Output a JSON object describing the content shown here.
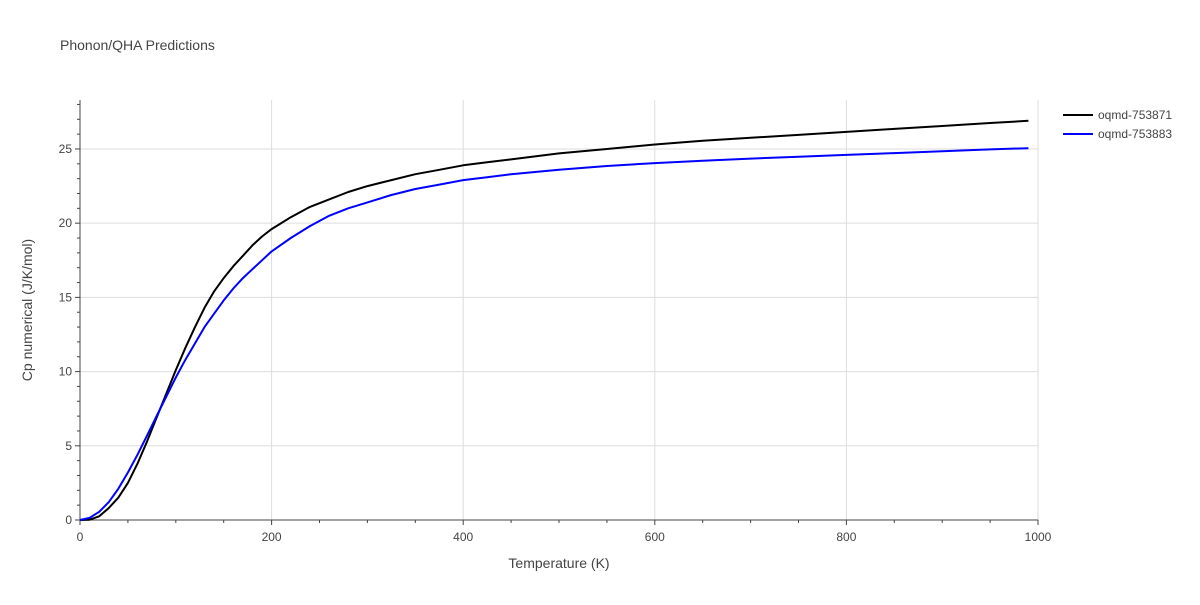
{
  "chart_data": {
    "type": "line",
    "title": "Phonon/QHA Predictions",
    "xlabel": "Temperature (K)",
    "ylabel": "Cp numerical (J/K/mol)",
    "xlim": [
      0,
      1000
    ],
    "ylim": [
      0,
      28.3
    ],
    "xticks": [
      0,
      200,
      400,
      600,
      800,
      1000
    ],
    "yticks": [
      0,
      5,
      10,
      15,
      20,
      25
    ],
    "grid": true,
    "legend_position": "top-right",
    "series": [
      {
        "name": "oqmd-753871",
        "color": "#000000",
        "x": [
          0,
          10,
          20,
          30,
          40,
          50,
          60,
          70,
          80,
          90,
          100,
          110,
          120,
          130,
          140,
          150,
          160,
          170,
          180,
          190,
          200,
          220,
          240,
          260,
          280,
          300,
          325,
          350,
          375,
          400,
          425,
          450,
          475,
          500,
          550,
          600,
          650,
          700,
          750,
          800,
          850,
          900,
          950,
          990
        ],
        "y": [
          0,
          0.02,
          0.25,
          0.8,
          1.5,
          2.5,
          3.8,
          5.3,
          6.9,
          8.5,
          10.1,
          11.6,
          13.0,
          14.3,
          15.4,
          16.3,
          17.1,
          17.8,
          18.5,
          19.1,
          19.6,
          20.4,
          21.1,
          21.6,
          22.1,
          22.5,
          22.9,
          23.3,
          23.6,
          23.9,
          24.1,
          24.3,
          24.5,
          24.7,
          25.0,
          25.3,
          25.55,
          25.75,
          25.95,
          26.15,
          26.35,
          26.55,
          26.75,
          26.9
        ]
      },
      {
        "name": "oqmd-753883",
        "color": "#0000ff",
        "x": [
          0,
          10,
          20,
          30,
          40,
          50,
          60,
          70,
          80,
          90,
          100,
          110,
          120,
          130,
          140,
          150,
          160,
          170,
          180,
          190,
          200,
          220,
          240,
          260,
          280,
          300,
          325,
          350,
          375,
          400,
          425,
          450,
          475,
          500,
          550,
          600,
          650,
          700,
          750,
          800,
          850,
          900,
          950,
          990
        ],
        "y": [
          0,
          0.15,
          0.55,
          1.2,
          2.1,
          3.2,
          4.4,
          5.7,
          7.0,
          8.3,
          9.6,
          10.8,
          11.9,
          13.0,
          13.9,
          14.8,
          15.6,
          16.3,
          16.9,
          17.5,
          18.1,
          19.0,
          19.8,
          20.5,
          21.0,
          21.4,
          21.9,
          22.3,
          22.6,
          22.9,
          23.1,
          23.3,
          23.45,
          23.6,
          23.85,
          24.05,
          24.2,
          24.35,
          24.48,
          24.6,
          24.72,
          24.85,
          24.97,
          25.05
        ]
      }
    ]
  }
}
